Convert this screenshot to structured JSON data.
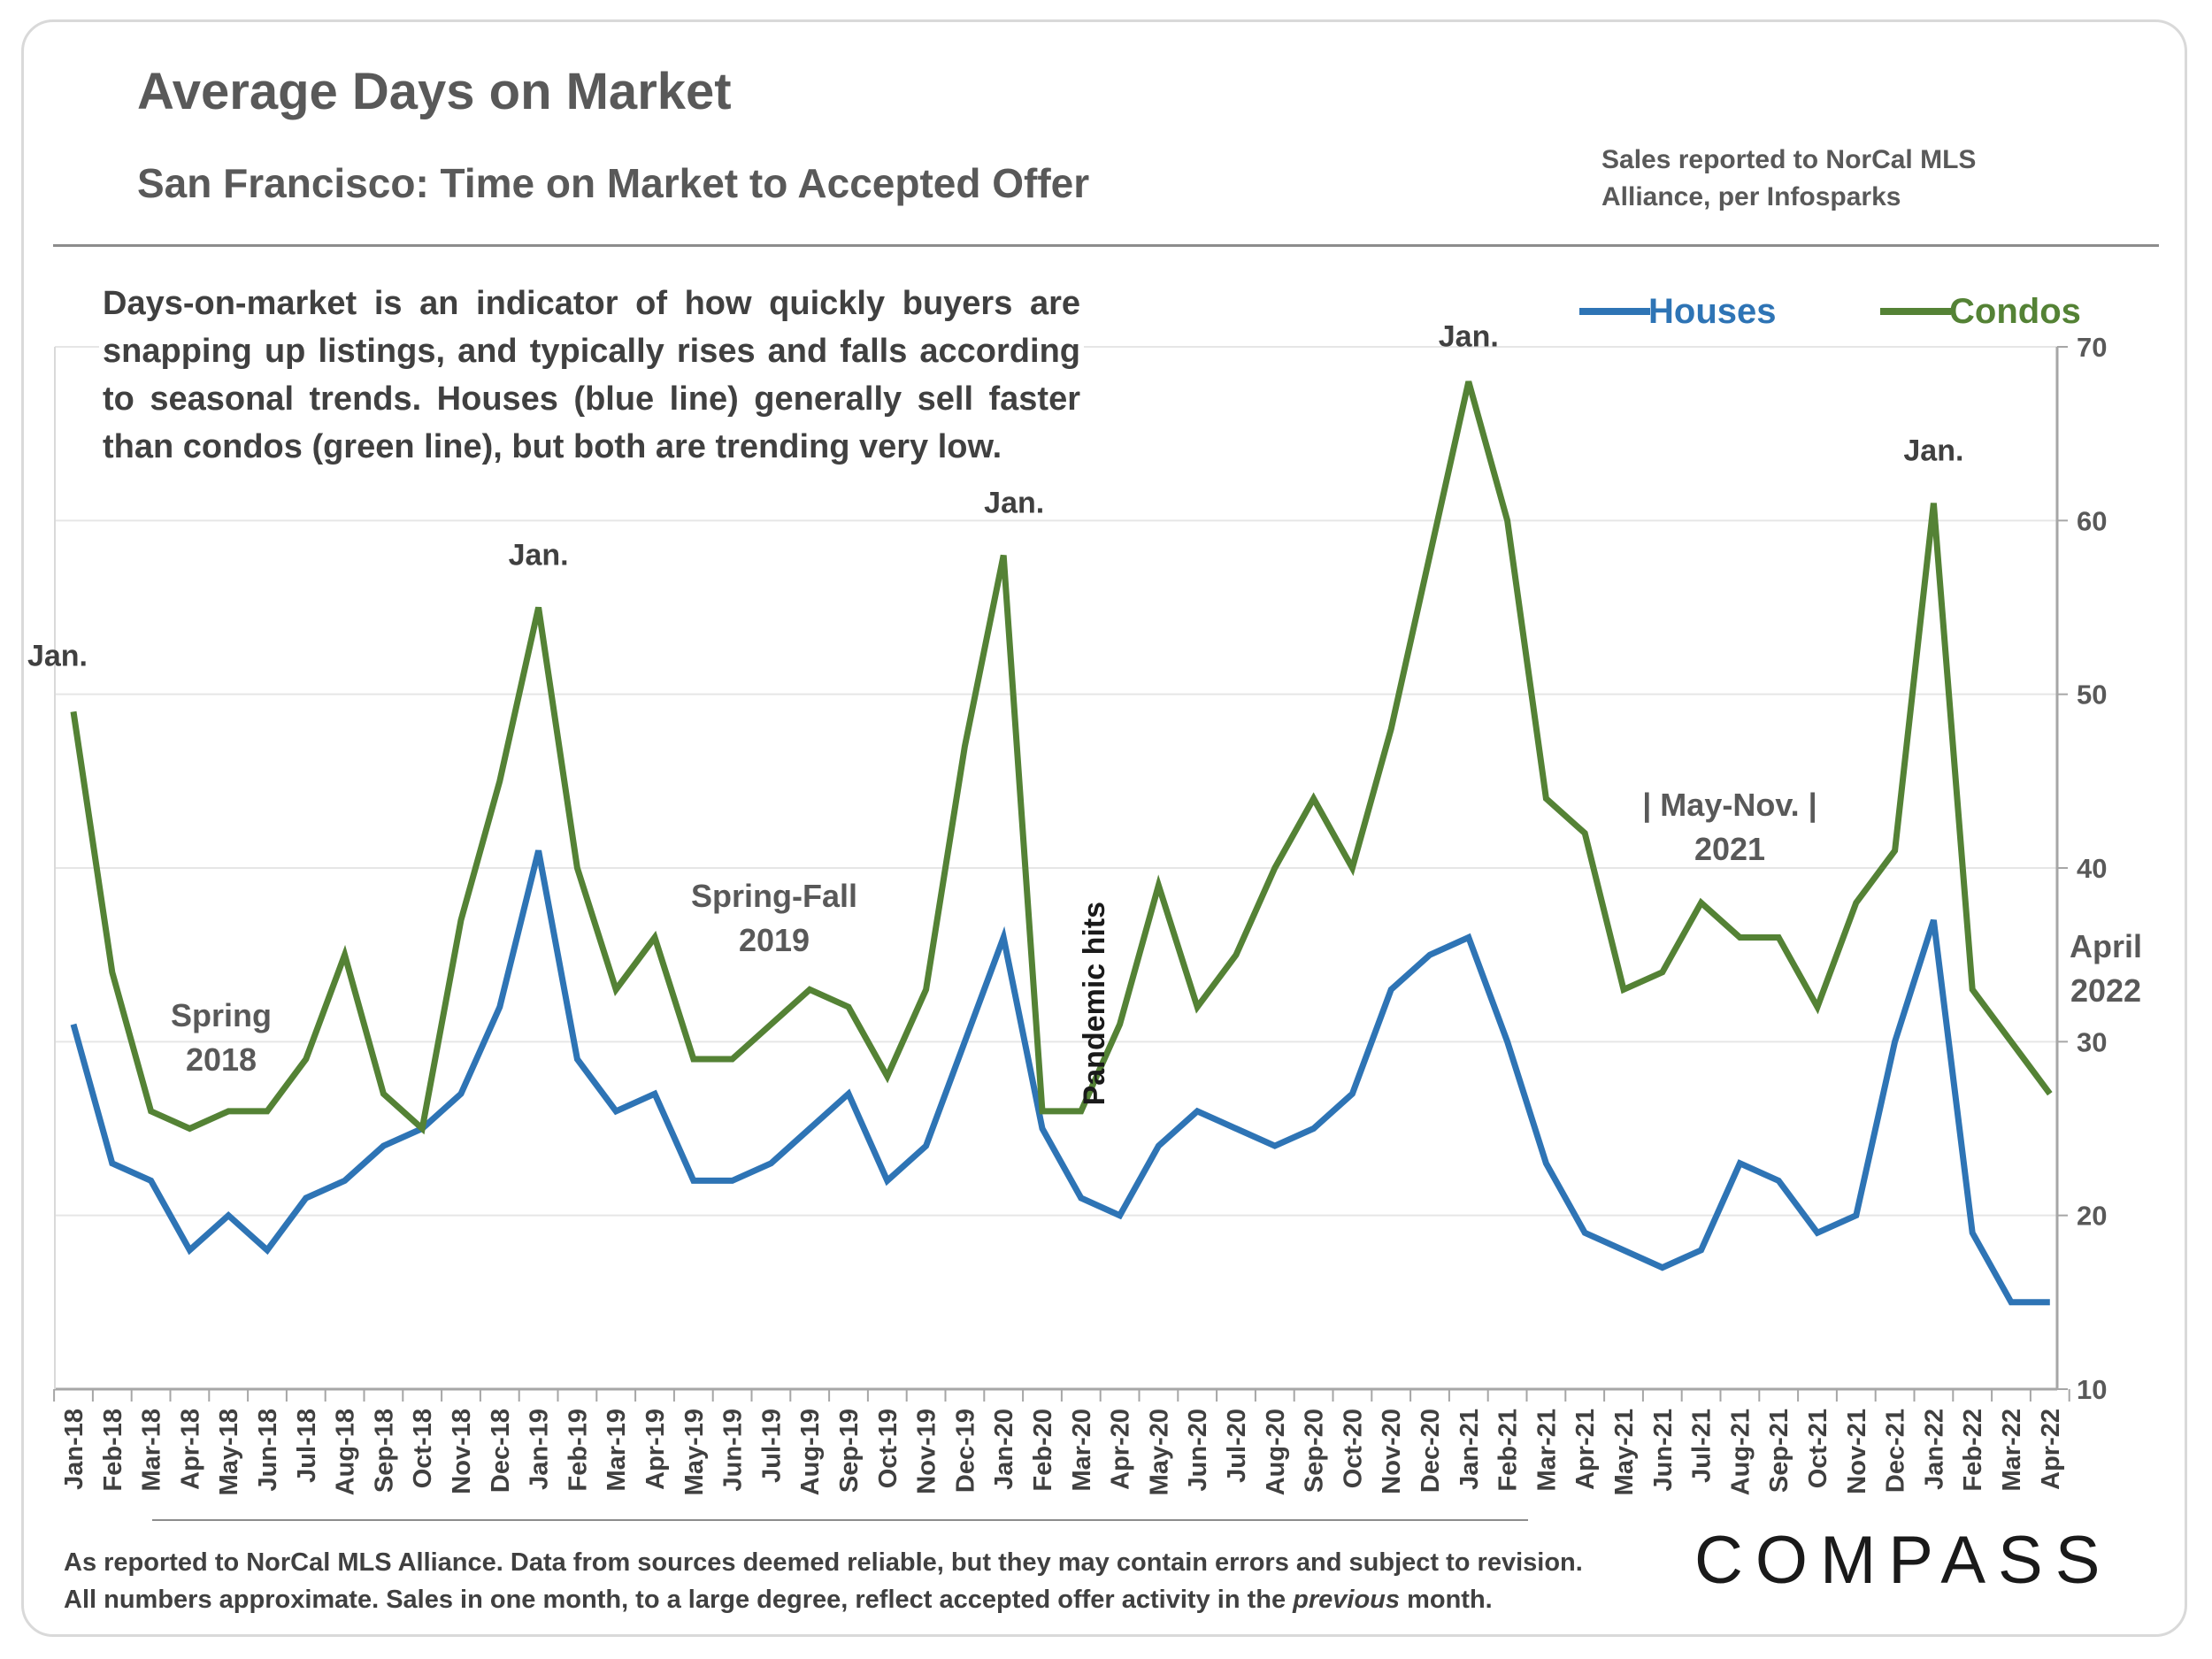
{
  "header": {
    "title": "Average Days on Market",
    "subtitle": "San Francisco: Time on Market to Accepted Offer",
    "source": "Sales reported to NorCal MLS Alliance, per Infosparks"
  },
  "description": "Days-on-market is an indicator of how quickly buyers are snapping up listings, and typically rises and falls according to seasonal trends. Houses (blue line) generally sell faster than condos (green line), but both are trending very low.",
  "footer": {
    "line1": "As reported to NorCal MLS Alliance. Data from sources deemed reliable, but they may contain errors and subject to revision.",
    "line2_pre": "All numbers approximate. Sales in one month, to a large degree, reflect accepted offer activity in the ",
    "line2_ital": "previous",
    "line2_post": " month."
  },
  "logo": "COMPASS",
  "chart_data": {
    "type": "line",
    "x": [
      "Jan-18",
      "Feb-18",
      "Mar-18",
      "Apr-18",
      "May-18",
      "Jun-18",
      "Jul-18",
      "Aug-18",
      "Sep-18",
      "Oct-18",
      "Nov-18",
      "Dec-18",
      "Jan-19",
      "Feb-19",
      "Mar-19",
      "Apr-19",
      "May-19",
      "Jun-19",
      "Jul-19",
      "Aug-19",
      "Sep-19",
      "Oct-19",
      "Nov-19",
      "Dec-19",
      "Jan-20",
      "Feb-20",
      "Mar-20",
      "Apr-20",
      "May-20",
      "Jun-20",
      "Jul-20",
      "Aug-20",
      "Sep-20",
      "Oct-20",
      "Nov-20",
      "Dec-20",
      "Jan-21",
      "Feb-21",
      "Mar-21",
      "Apr-21",
      "May-21",
      "Jun-21",
      "Jul-21",
      "Aug-21",
      "Sep-21",
      "Oct-21",
      "Nov-21",
      "Dec-21",
      "Jan-22",
      "Feb-22",
      "Mar-22",
      "Apr-22"
    ],
    "series": [
      {
        "name": "Houses",
        "color": "#2e74b5",
        "values": [
          31,
          23,
          22,
          18,
          20,
          18,
          21,
          22,
          24,
          25,
          27,
          32,
          41,
          29,
          26,
          27,
          22,
          22,
          23,
          25,
          27,
          22,
          24,
          30,
          36,
          25,
          21,
          20,
          24,
          26,
          25,
          24,
          25,
          27,
          33,
          35,
          36,
          30,
          23,
          19,
          18,
          17,
          18,
          23,
          22,
          19,
          20,
          30,
          37,
          19,
          15,
          15
        ]
      },
      {
        "name": "Condos",
        "color": "#548235",
        "values": [
          49,
          34,
          26,
          25,
          26,
          26,
          29,
          35,
          27,
          25,
          37,
          45,
          55,
          40,
          33,
          36,
          29,
          29,
          31,
          33,
          32,
          28,
          33,
          47,
          58,
          26,
          26,
          31,
          39,
          32,
          35,
          40,
          44,
          40,
          48,
          58,
          68,
          60,
          44,
          42,
          33,
          34,
          38,
          36,
          36,
          32,
          38,
          41,
          61,
          33,
          30,
          27
        ]
      }
    ],
    "y_axis": {
      "position": "right",
      "ylim": [
        10,
        70
      ],
      "ticks": [
        10,
        20,
        30,
        40,
        50,
        60,
        70
      ]
    },
    "grid": true,
    "legend": {
      "placement": "top-right",
      "entries": [
        "Houses",
        "Condos"
      ]
    },
    "annotations": [
      {
        "text": "Jan.",
        "x": "Jan-18",
        "y": 49
      },
      {
        "text": "Jan.",
        "x": "Jan-19",
        "y": 55
      },
      {
        "text": "Jan.",
        "x": "Jan-20",
        "y": 58
      },
      {
        "text": "Jan.",
        "x": "Jan-21",
        "y": 68
      },
      {
        "text": "Jan.",
        "x": "Jan-22",
        "y": 61
      },
      {
        "text": "Spring 2018",
        "x": "May-18",
        "y": 28
      },
      {
        "text": "Spring-Fall 2019",
        "x": "Jul-19",
        "y": 37
      },
      {
        "text": "Pandemic hits",
        "x": "Mar-20",
        "y": 35
      },
      {
        "text": "| May-Nov. | 2021",
        "x": "Jul-21",
        "y": 42
      },
      {
        "text": "April 2022",
        "x": "Apr-22",
        "y": 33
      }
    ]
  }
}
